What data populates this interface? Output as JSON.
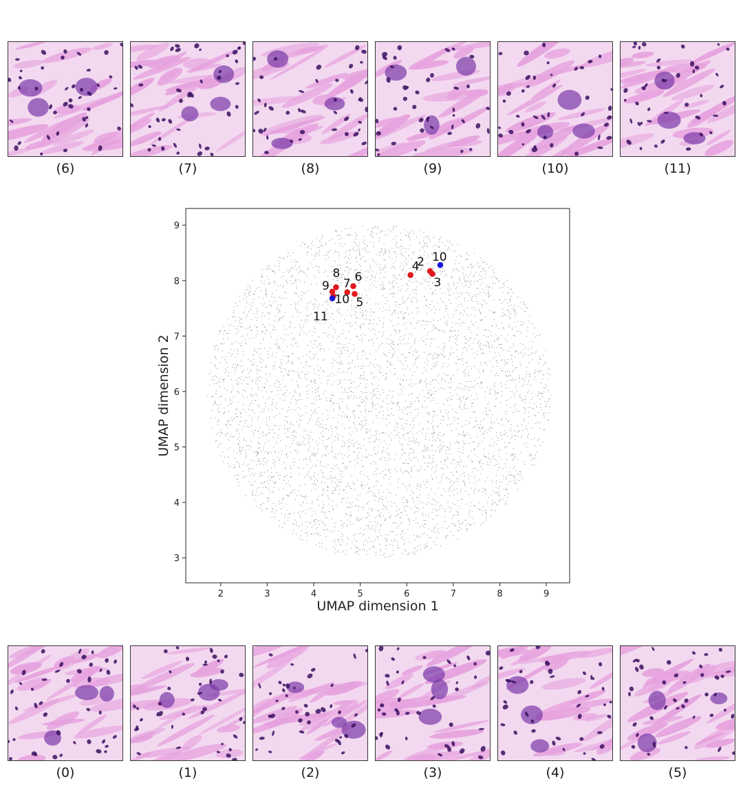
{
  "top_tiles": [
    {
      "caption": "(6)"
    },
    {
      "caption": "(7)"
    },
    {
      "caption": "(8)"
    },
    {
      "caption": "(9)"
    },
    {
      "caption": "(10)"
    },
    {
      "caption": "(11)"
    }
  ],
  "bottom_tiles": [
    {
      "caption": "(0)"
    },
    {
      "caption": "(1)"
    },
    {
      "caption": "(2)"
    },
    {
      "caption": "(3)"
    },
    {
      "caption": "(4)"
    },
    {
      "caption": "(5)"
    }
  ],
  "colors": {
    "background_points": "#8a8a8a",
    "highlight_red": "#e0191c",
    "highlight_blue": "#1a1ad6",
    "tissue_pink": "#e6a2de",
    "tissue_light": "#f3d9f0",
    "nucleus": "#3a1060"
  },
  "chart_data": {
    "type": "scatter",
    "xlabel": "UMAP dimension 1",
    "ylabel": "UMAP dimension 2",
    "xlim": [
      1.25,
      9.5
    ],
    "ylim": [
      2.55,
      9.3
    ],
    "x_ticks": [
      2,
      3,
      4,
      5,
      6,
      7,
      8,
      9
    ],
    "y_ticks": [
      3,
      4,
      5,
      6,
      7,
      8,
      9
    ],
    "grid": false,
    "background_cloud": {
      "center": [
        5.4,
        6.0
      ],
      "radius_x": 3.7,
      "radius_y": 3.0
    },
    "highlighted_points": [
      {
        "label": "10",
        "x": 6.72,
        "y": 8.28,
        "color": "blue"
      },
      {
        "label": "2",
        "x": 6.5,
        "y": 8.17,
        "color": "red"
      },
      {
        "label": "3",
        "x": 6.55,
        "y": 8.12,
        "color": "red"
      },
      {
        "label": "4",
        "x": 6.08,
        "y": 8.1,
        "color": "red"
      },
      {
        "label": "8",
        "x": 4.48,
        "y": 7.88,
        "color": "red"
      },
      {
        "label": "6",
        "x": 4.85,
        "y": 7.9,
        "color": "red"
      },
      {
        "label": "9",
        "x": 4.4,
        "y": 7.8,
        "color": "red"
      },
      {
        "label": "7",
        "x": 4.72,
        "y": 7.79,
        "color": "red"
      },
      {
        "label": "5",
        "x": 4.88,
        "y": 7.76,
        "color": "red"
      },
      {
        "label": "10",
        "x": 4.42,
        "y": 7.72,
        "color": "red"
      },
      {
        "label": "11",
        "x": 4.4,
        "y": 7.68,
        "color": "blue"
      }
    ]
  }
}
